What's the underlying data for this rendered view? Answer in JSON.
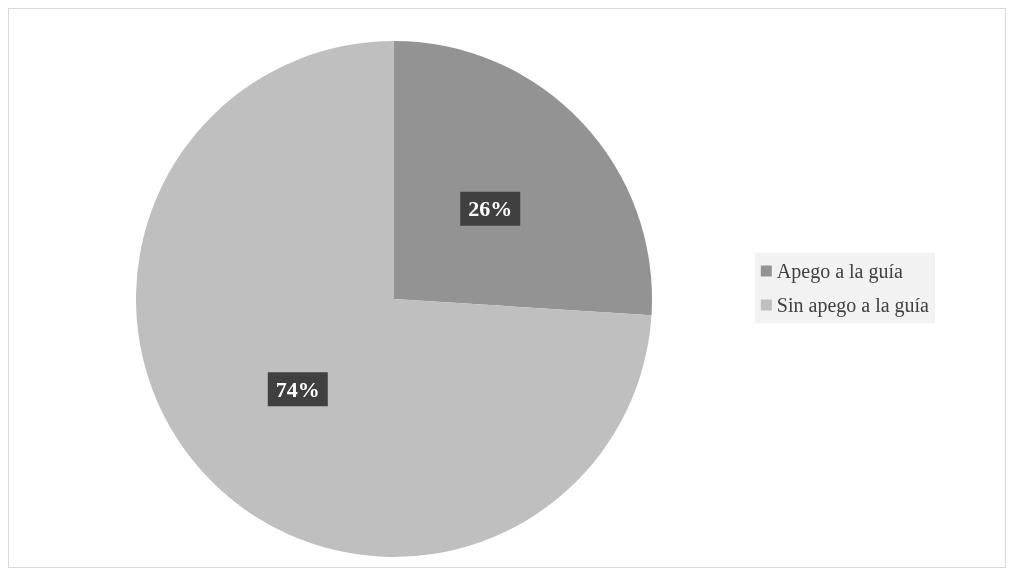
{
  "chart_data": {
    "type": "pie",
    "categories": [
      "Apego a la guía",
      "Sin apego a la guía"
    ],
    "values": [
      26,
      74
    ],
    "colors": [
      "#939393",
      "#bfbfbf"
    ],
    "value_labels": [
      "26%",
      "74%"
    ],
    "legend": "right"
  }
}
